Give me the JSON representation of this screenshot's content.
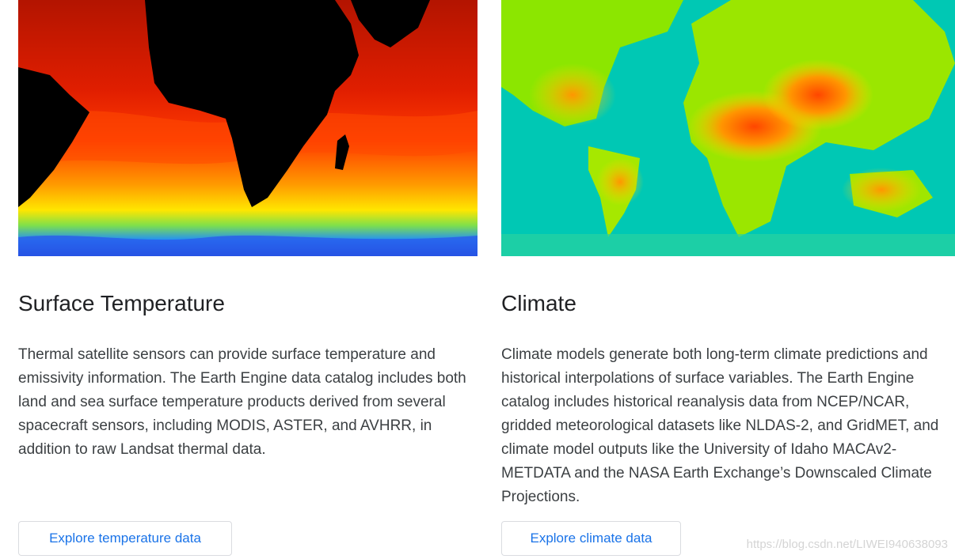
{
  "cards": [
    {
      "title": "Surface Temperature",
      "description": "Thermal satellite sensors can provide surface temperature and emissivity information. The Earth Engine data catalog includes both land and sea surface temperature products derived from several spacecraft sensors, including MODIS, ASTER, and AVHRR, in addition to raw Landsat thermal data.",
      "button_label": "Explore temperature data",
      "image_palette": [
        "#000000",
        "#b31400",
        "#ff2a00",
        "#ff8a00",
        "#ffe600",
        "#7fe04a",
        "#1e8cff",
        "#1432d2"
      ]
    },
    {
      "title": "Climate",
      "description": "Climate models generate both long-term climate predictions and historical interpolations of surface variables. The Earth Engine catalog includes historical reanalysis data from NCEP/NCAR, gridded meteorological datasets like NLDAS-2, and GridMET, and climate model outputs like the University of Idaho MACAv2-METDATA and the NASA Earth Exchange’s Downscaled Climate Projections.",
      "button_label": "Explore climate data",
      "image_palette": [
        "#00c8b4",
        "#28d296",
        "#8ce600",
        "#d2f000",
        "#ffdc00",
        "#ff9600",
        "#ff4600"
      ]
    }
  ],
  "watermark": "https://blog.csdn.net/LIWEI940638093",
  "colors": {
    "link": "#1a73e8",
    "border": "#dadce0",
    "heading": "#202124",
    "body_text": "#3c4043"
  }
}
